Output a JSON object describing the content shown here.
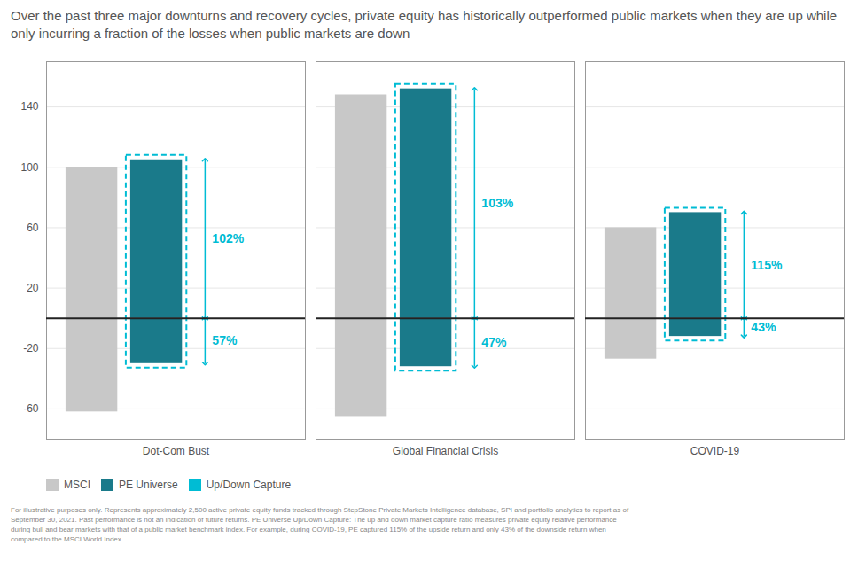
{
  "chart_data": {
    "type": "bar",
    "title": "Over the past three major downturns and recovery cycles, private equity has historically outperformed public markets when they are up while only incurring a fraction of the losses when public markets are down",
    "categories": [
      "Dot-Com Bust",
      "Global Financial Crisis",
      "COVID-19"
    ],
    "series": [
      {
        "name": "MSCI",
        "color": "#c8c8c8",
        "values": [
          100,
          148,
          60
        ],
        "down_values": [
          -62,
          -65,
          -27
        ]
      },
      {
        "name": "PE Universe",
        "color": "#1a7a8a",
        "values": [
          105,
          152,
          70
        ],
        "down_values": [
          -30,
          -32,
          -12
        ]
      }
    ],
    "capture": {
      "name": "Up/Down Capture",
      "color": "#00bcd4",
      "up_values": [
        102,
        103,
        115
      ],
      "up_labels": [
        "102%",
        "103%",
        "115%"
      ],
      "down_values": [
        57,
        47,
        43
      ],
      "down_labels": [
        "57%",
        "47%",
        "43%"
      ]
    },
    "footnote": "For illustrative purposes only. Represents approximately 2,500 active private equity funds tracked through StepStone Private Markets Intelligence database, SPI and portfolio analytics to report as of\nSeptember 30, 2021. Past performance is not an indication of future returns. PE Universe Up/Down Capture: The up and down market capture ratio measures private equity relative performance\nduring bull and bear markets with that of a public market benchmark index. For example, during COVID-19, PE captured 115% of the upside return and only 43% of the downside return when\ncompared to the MSCI World Index.",
    "ylim": [
      -80,
      170
    ],
    "yticks": [
      -60,
      -20,
      20,
      60,
      100,
      140
    ],
    "grid": true,
    "legend": "bottom"
  }
}
